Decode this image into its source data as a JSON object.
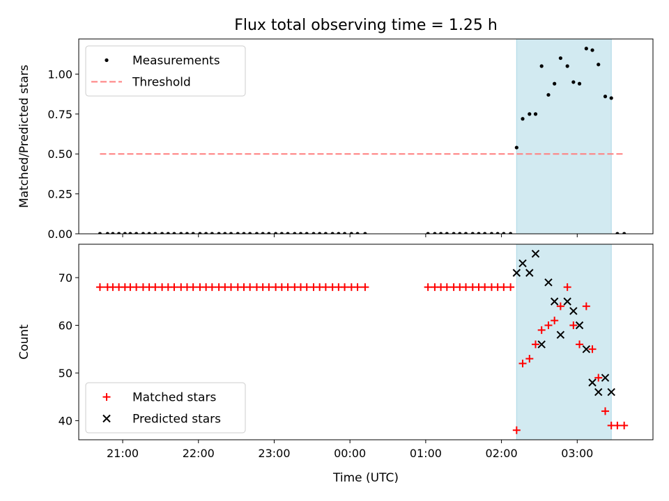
{
  "title": "Flux total observing time = 1.25 h",
  "chart_data": [
    {
      "type": "scatter",
      "ylabel": "Matched/Predicted stars",
      "xlabel": "",
      "xlim_hours": [
        20.42,
        28.0
      ],
      "ylim": [
        0.0,
        1.22
      ],
      "yticks": [
        0.0,
        0.25,
        0.5,
        0.75,
        1.0
      ],
      "ytick_labels": [
        "0.00",
        "0.25",
        "0.50",
        "0.75",
        "1.00"
      ],
      "legend_position": "top-left",
      "shaded_interval_hours": [
        26.2,
        27.45
      ],
      "colors": {
        "shade": "#add8e6",
        "points": "#000000",
        "threshold": "#ff7f7f"
      },
      "series": [
        {
          "name": "Measurements",
          "marker": "dot",
          "points": [
            [
              20.7,
              0
            ],
            [
              20.8,
              0
            ],
            [
              20.87,
              0
            ],
            [
              20.95,
              0
            ],
            [
              21.03,
              0
            ],
            [
              21.1,
              0
            ],
            [
              21.18,
              0
            ],
            [
              21.27,
              0
            ],
            [
              21.35,
              0
            ],
            [
              21.43,
              0
            ],
            [
              21.52,
              0
            ],
            [
              21.6,
              0
            ],
            [
              21.68,
              0
            ],
            [
              21.77,
              0
            ],
            [
              21.85,
              0
            ],
            [
              21.93,
              0
            ],
            [
              22.02,
              0
            ],
            [
              22.1,
              0
            ],
            [
              22.18,
              0
            ],
            [
              22.27,
              0
            ],
            [
              22.35,
              0
            ],
            [
              22.43,
              0
            ],
            [
              22.52,
              0
            ],
            [
              22.6,
              0
            ],
            [
              22.68,
              0
            ],
            [
              22.77,
              0
            ],
            [
              22.85,
              0
            ],
            [
              22.93,
              0
            ],
            [
              23.02,
              0
            ],
            [
              23.1,
              0
            ],
            [
              23.18,
              0
            ],
            [
              23.27,
              0
            ],
            [
              23.35,
              0
            ],
            [
              23.43,
              0
            ],
            [
              23.52,
              0
            ],
            [
              23.6,
              0
            ],
            [
              23.68,
              0
            ],
            [
              23.77,
              0
            ],
            [
              23.85,
              0
            ],
            [
              23.93,
              0
            ],
            [
              24.02,
              0
            ],
            [
              24.1,
              0
            ],
            [
              24.2,
              0
            ],
            [
              25.03,
              0
            ],
            [
              25.12,
              0
            ],
            [
              25.2,
              0
            ],
            [
              25.28,
              0
            ],
            [
              25.37,
              0
            ],
            [
              25.45,
              0
            ],
            [
              25.53,
              0
            ],
            [
              25.62,
              0
            ],
            [
              25.7,
              0
            ],
            [
              25.78,
              0
            ],
            [
              25.87,
              0
            ],
            [
              25.95,
              0
            ],
            [
              26.03,
              0
            ],
            [
              26.12,
              0
            ],
            [
              26.2,
              0.54
            ],
            [
              26.28,
              0.72
            ],
            [
              26.37,
              0.75
            ],
            [
              26.45,
              0.75
            ],
            [
              26.53,
              1.05
            ],
            [
              26.62,
              0.87
            ],
            [
              26.7,
              0.94
            ],
            [
              26.78,
              1.1
            ],
            [
              26.87,
              1.05
            ],
            [
              26.95,
              0.95
            ],
            [
              27.03,
              0.94
            ],
            [
              27.12,
              1.16
            ],
            [
              27.2,
              1.15
            ],
            [
              27.28,
              1.06
            ],
            [
              27.37,
              0.86
            ],
            [
              27.45,
              0.85
            ],
            [
              27.53,
              0
            ],
            [
              27.62,
              0
            ]
          ]
        },
        {
          "name": "Threshold",
          "style": "dashed",
          "x_range_hours": [
            20.7,
            27.62
          ],
          "value": 0.5
        }
      ]
    },
    {
      "type": "scatter",
      "ylabel": "Count",
      "xlabel": "Time (UTC)",
      "xlim_hours": [
        20.42,
        28.0
      ],
      "ylim": [
        36,
        77
      ],
      "yticks": [
        40,
        50,
        60,
        70
      ],
      "ytick_labels": [
        "40",
        "50",
        "60",
        "70"
      ],
      "xticks_hours": [
        21,
        22,
        23,
        24,
        25,
        26,
        27
      ],
      "xtick_labels": [
        "21:00",
        "22:00",
        "23:00",
        "00:00",
        "01:00",
        "02:00",
        "03:00"
      ],
      "legend_position": "bottom-left",
      "shaded_interval_hours": [
        26.2,
        27.45
      ],
      "colors": {
        "shade": "#add8e6",
        "matched": "#ff0000",
        "predicted": "#000000"
      },
      "series": [
        {
          "name": "Matched stars",
          "marker": "plus",
          "points": [
            [
              20.7,
              68
            ],
            [
              20.8,
              68
            ],
            [
              20.87,
              68
            ],
            [
              20.95,
              68
            ],
            [
              21.03,
              68
            ],
            [
              21.1,
              68
            ],
            [
              21.18,
              68
            ],
            [
              21.27,
              68
            ],
            [
              21.35,
              68
            ],
            [
              21.43,
              68
            ],
            [
              21.52,
              68
            ],
            [
              21.6,
              68
            ],
            [
              21.68,
              68
            ],
            [
              21.77,
              68
            ],
            [
              21.85,
              68
            ],
            [
              21.93,
              68
            ],
            [
              22.02,
              68
            ],
            [
              22.1,
              68
            ],
            [
              22.18,
              68
            ],
            [
              22.27,
              68
            ],
            [
              22.35,
              68
            ],
            [
              22.43,
              68
            ],
            [
              22.52,
              68
            ],
            [
              22.6,
              68
            ],
            [
              22.68,
              68
            ],
            [
              22.77,
              68
            ],
            [
              22.85,
              68
            ],
            [
              22.93,
              68
            ],
            [
              23.02,
              68
            ],
            [
              23.1,
              68
            ],
            [
              23.18,
              68
            ],
            [
              23.27,
              68
            ],
            [
              23.35,
              68
            ],
            [
              23.43,
              68
            ],
            [
              23.52,
              68
            ],
            [
              23.6,
              68
            ],
            [
              23.68,
              68
            ],
            [
              23.77,
              68
            ],
            [
              23.85,
              68
            ],
            [
              23.93,
              68
            ],
            [
              24.02,
              68
            ],
            [
              24.1,
              68
            ],
            [
              24.2,
              68
            ],
            [
              25.03,
              68
            ],
            [
              25.12,
              68
            ],
            [
              25.2,
              68
            ],
            [
              25.28,
              68
            ],
            [
              25.37,
              68
            ],
            [
              25.45,
              68
            ],
            [
              25.53,
              68
            ],
            [
              25.62,
              68
            ],
            [
              25.7,
              68
            ],
            [
              25.78,
              68
            ],
            [
              25.87,
              68
            ],
            [
              25.95,
              68
            ],
            [
              26.03,
              68
            ],
            [
              26.12,
              68
            ],
            [
              26.2,
              38
            ],
            [
              26.28,
              52
            ],
            [
              26.37,
              53
            ],
            [
              26.45,
              56
            ],
            [
              26.53,
              59
            ],
            [
              26.62,
              60
            ],
            [
              26.7,
              61
            ],
            [
              26.78,
              64
            ],
            [
              26.87,
              68
            ],
            [
              26.95,
              60
            ],
            [
              27.03,
              56
            ],
            [
              27.12,
              64
            ],
            [
              27.2,
              55
            ],
            [
              27.28,
              49
            ],
            [
              27.37,
              42
            ],
            [
              27.45,
              39
            ],
            [
              27.53,
              39
            ],
            [
              27.62,
              39
            ]
          ]
        },
        {
          "name": "Predicted stars",
          "marker": "x",
          "points": [
            [
              26.2,
              71
            ],
            [
              26.28,
              73
            ],
            [
              26.37,
              71
            ],
            [
              26.45,
              75
            ],
            [
              26.53,
              56
            ],
            [
              26.62,
              69
            ],
            [
              26.7,
              65
            ],
            [
              26.78,
              58
            ],
            [
              26.87,
              65
            ],
            [
              26.95,
              63
            ],
            [
              27.03,
              60
            ],
            [
              27.12,
              55
            ],
            [
              27.2,
              48
            ],
            [
              27.28,
              46
            ],
            [
              27.37,
              49
            ],
            [
              27.45,
              46
            ]
          ]
        }
      ]
    }
  ]
}
